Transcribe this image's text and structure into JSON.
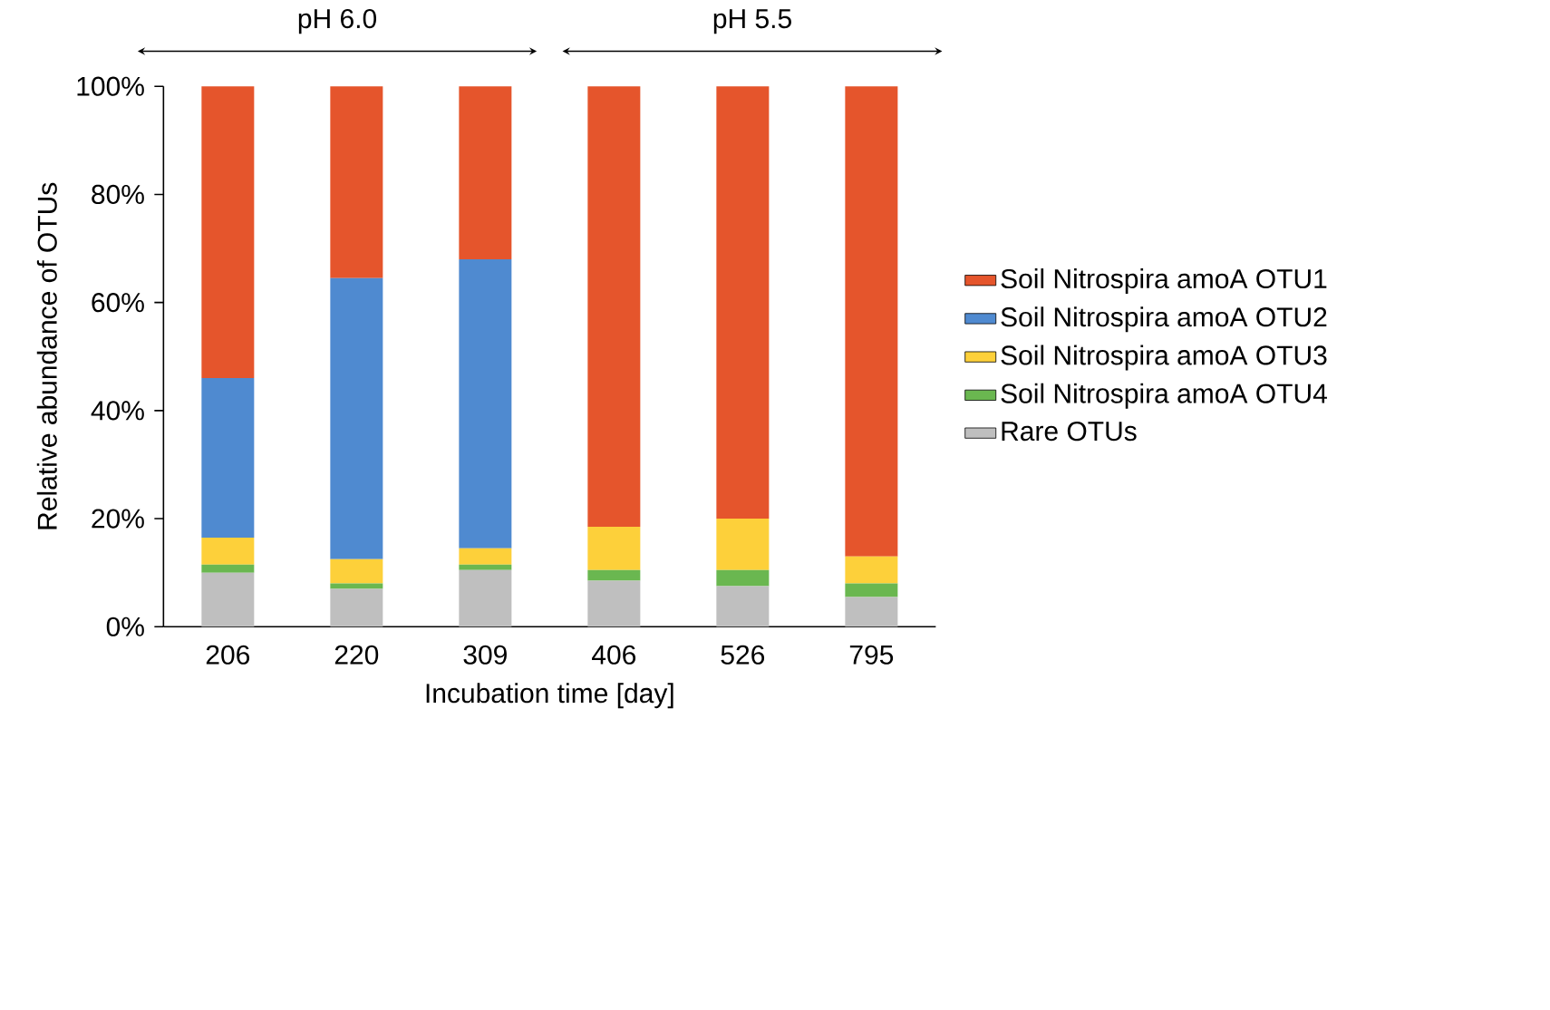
{
  "chart_data": {
    "type": "bar",
    "stacked": true,
    "xlabel": "Incubation time [day]",
    "ylabel": "Relative abundance of OTUs",
    "categories": [
      "206",
      "220",
      "309",
      "406",
      "526",
      "795"
    ],
    "series": [
      {
        "name": "Rare OTUs",
        "color": "#bfbfbf",
        "values": [
          10,
          7,
          10.5,
          8.5,
          7.5,
          5.5
        ]
      },
      {
        "name": "Soil Nitrospira amoA OTU4",
        "color": "#6ab750",
        "values": [
          1.5,
          1,
          1,
          2,
          3,
          2.5
        ]
      },
      {
        "name": "Soil Nitrospira amoA OTU3",
        "color": "#fdd03a",
        "values": [
          5,
          4.5,
          3,
          8,
          9.5,
          5
        ]
      },
      {
        "name": "Soil Nitrospira amoA OTU2",
        "color": "#4f8ad0",
        "values": [
          29.5,
          52,
          53.5,
          0,
          0,
          0
        ]
      },
      {
        "name": "Soil Nitrospira amoA OTU1",
        "color": "#e5552c",
        "values": [
          54,
          35.5,
          32,
          81.5,
          80,
          87
        ]
      }
    ],
    "ylim": [
      0,
      100
    ],
    "yticks": [
      {
        "value": 0,
        "label": "0%"
      },
      {
        "value": 20,
        "label": "20%"
      },
      {
        "value": 40,
        "label": "40%"
      },
      {
        "value": 60,
        "label": "60%"
      },
      {
        "value": 80,
        "label": "80%"
      },
      {
        "value": 100,
        "label": "100%"
      }
    ],
    "legend": "right",
    "annotations": [
      "pH 6.0",
      "pH 5.5"
    ]
  }
}
